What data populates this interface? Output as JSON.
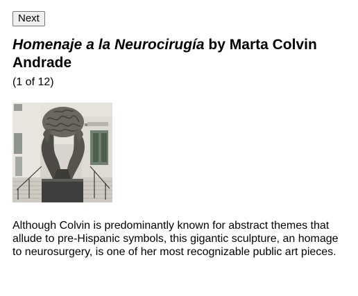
{
  "nav": {
    "next_label": "Next"
  },
  "artwork": {
    "title": "Homenaje a la Neurocirugía",
    "byline": " by Marta Colvin Andrade",
    "counter": "(1 of 12)",
    "image_alt": "Homenaje a la Neurocirugía sculpture",
    "description": "Although Colvin is predominantly known for abstract themes that allude to pre-Hispanic symbols, this gigantic sculpture, an homage to neurosurgery, is one of her most recognizable public art pieces."
  }
}
